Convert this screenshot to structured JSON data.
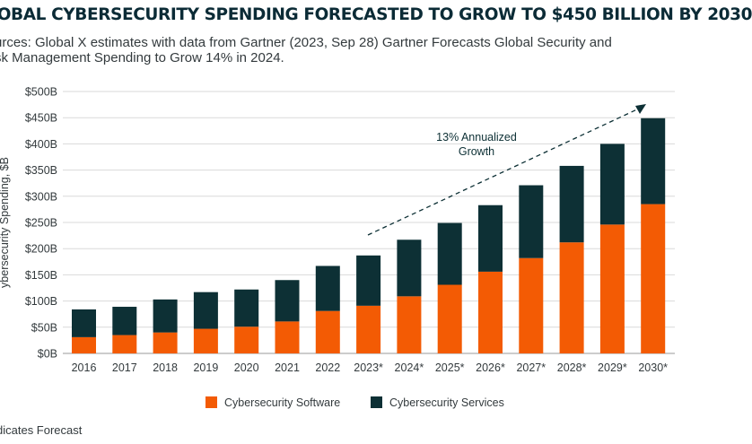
{
  "header": {
    "title": "LOBAL CYBERSECURITY SPENDING FORECASTED TO GROW TO $450 BILLION BY 2030",
    "source_line1": "urces: Global X estimates with data from Gartner (2023, Sep 28) Gartner Forecasts Global Security and",
    "source_line2": "sk Management Spending to Grow 14% in 2024."
  },
  "footnote": "dicates Forecast",
  "colors": {
    "software": "#f35b04",
    "services": "#0d3035",
    "grid": "#d9d9d9",
    "text": "#333a3d"
  },
  "chart_data": {
    "type": "bar",
    "stacked": true,
    "categories": [
      "2016",
      "2017",
      "2018",
      "2019",
      "2020",
      "2021",
      "2022",
      "2023*",
      "2024*",
      "2025*",
      "2026*",
      "2027*",
      "2028*",
      "2029*",
      "2030*"
    ],
    "series": [
      {
        "name": "Cybersecurity Software",
        "values": [
          31,
          35,
          40,
          47,
          51,
          61,
          81,
          91,
          109,
          131,
          156,
          182,
          212,
          246,
          285
        ]
      },
      {
        "name": "Cybersecurity Services",
        "values": [
          53,
          54,
          63,
          70,
          71,
          79,
          86,
          96,
          108,
          118,
          127,
          139,
          146,
          154,
          164
        ]
      }
    ],
    "ylabel": "ybersecurity Spending, $B",
    "ylim": [
      0,
      500
    ],
    "yticks": [
      "$0B",
      "$50B",
      "$100B",
      "$150B",
      "$200B",
      "$250B",
      "$300B",
      "$350B",
      "$400B",
      "$450B",
      "$500B"
    ],
    "grid": true,
    "legend": "bottom",
    "annotation": {
      "line1": "13% Annualized",
      "line2": "Growth"
    }
  }
}
